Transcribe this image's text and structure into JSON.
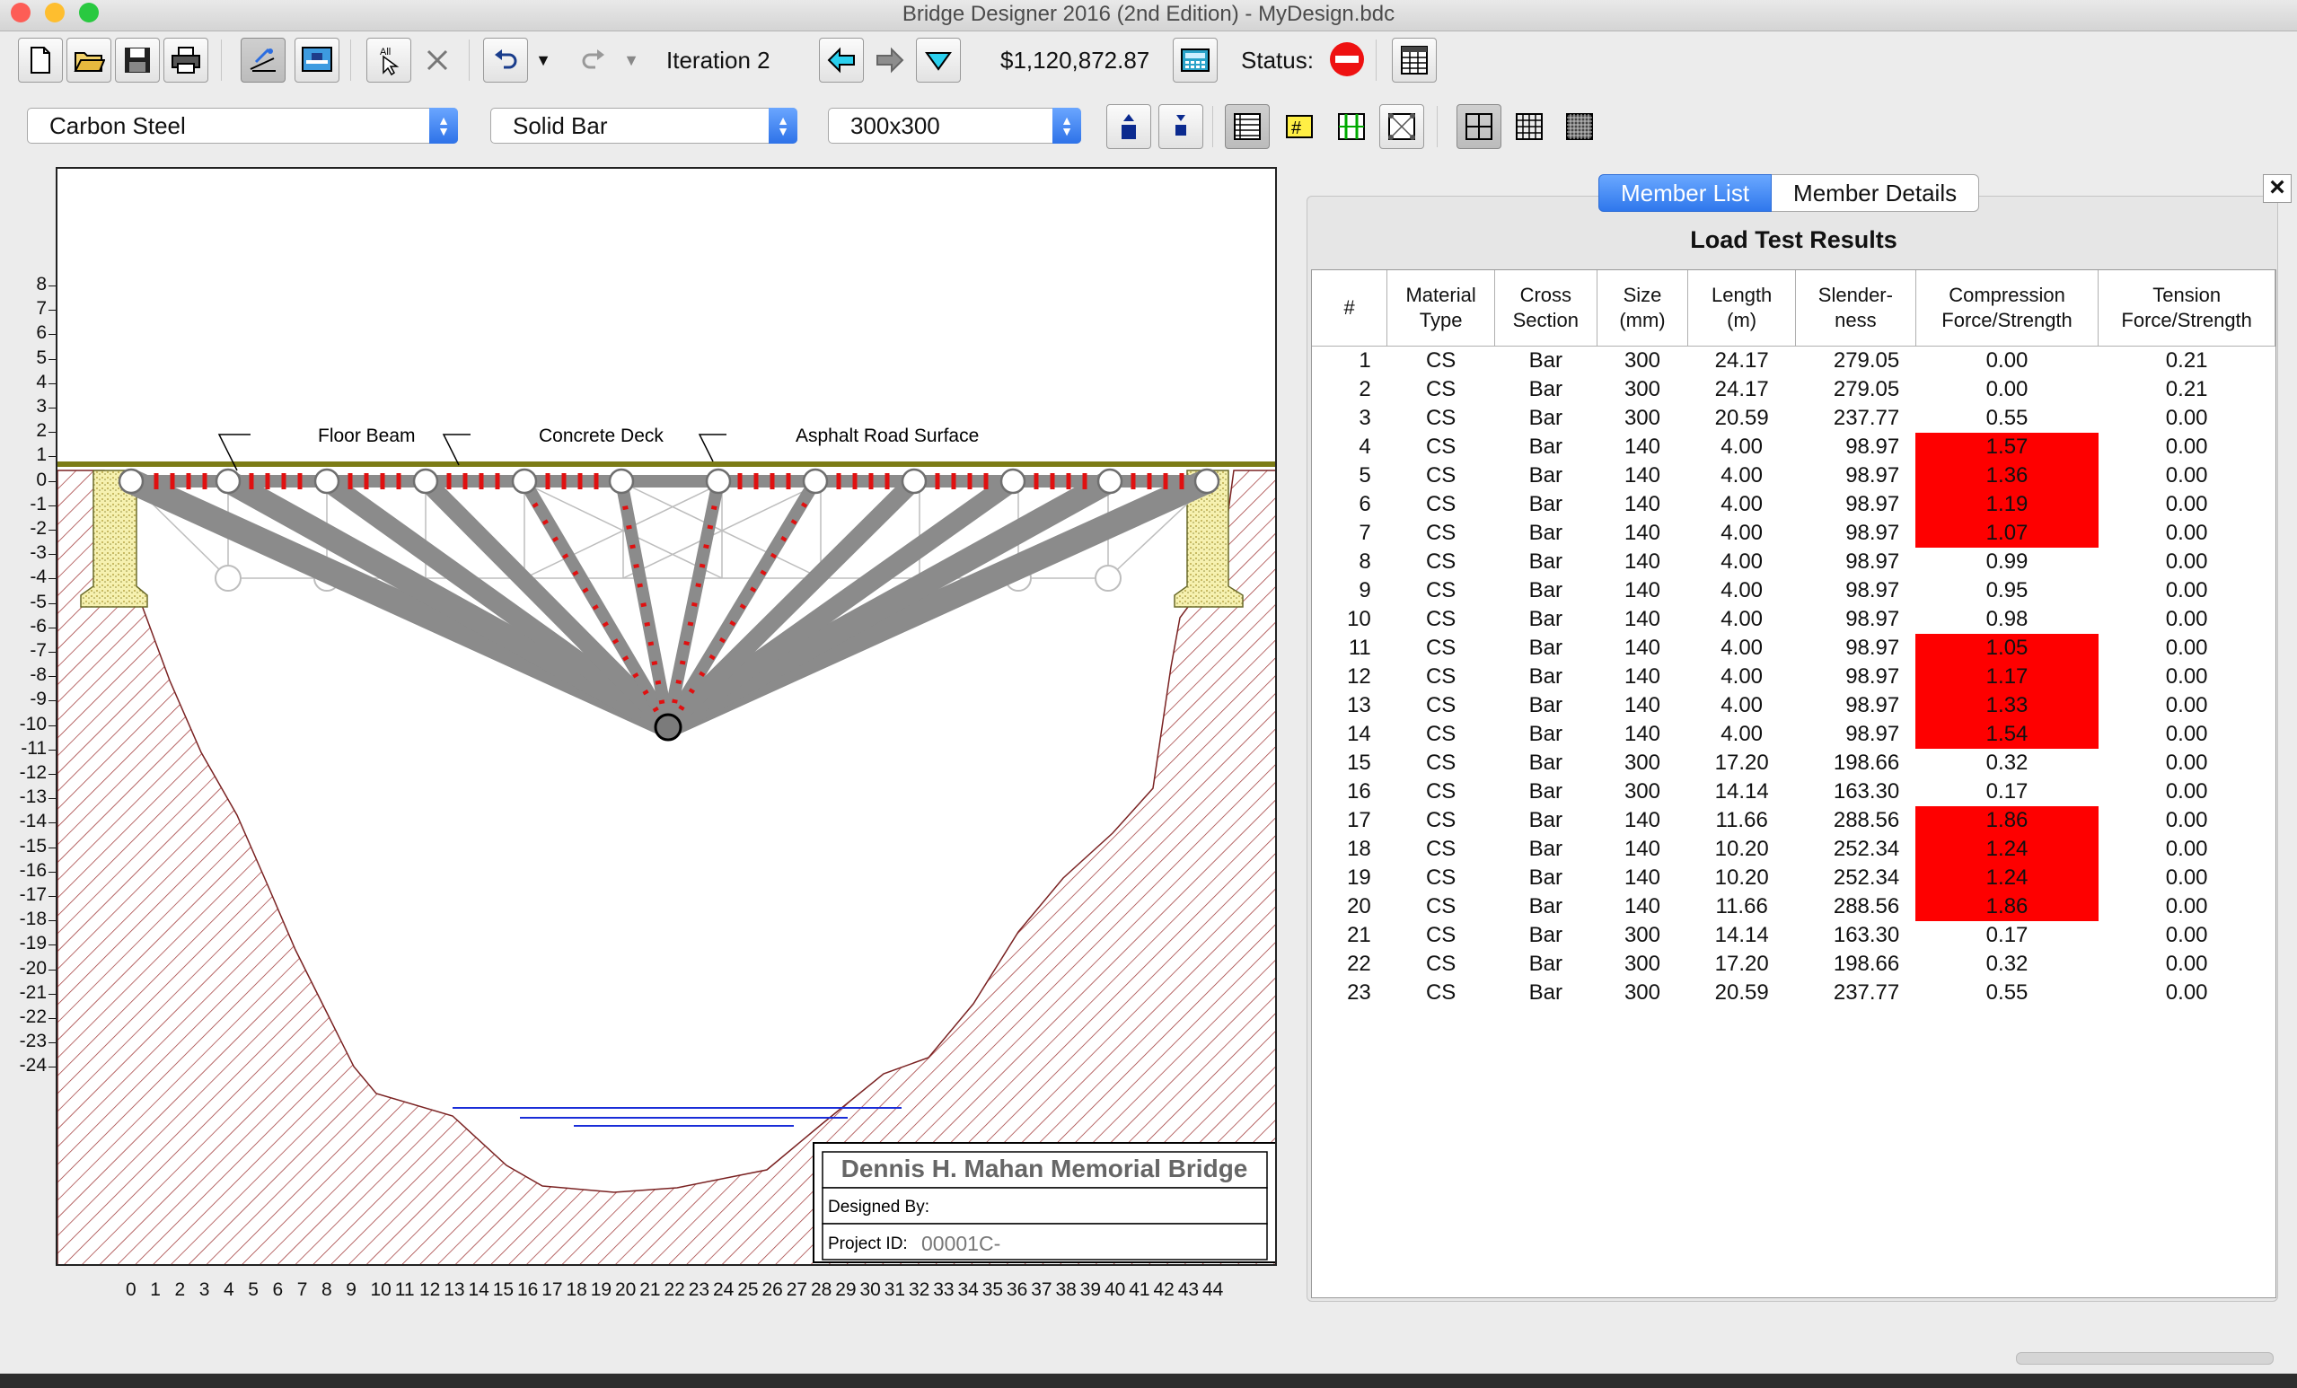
{
  "window": {
    "title": "Bridge Designer 2016 (2nd Edition) - MyDesign.bdc"
  },
  "toolbar": {
    "iteration_label": "Iteration 2",
    "cost": "$1,120,872.87",
    "status_label": "Status:"
  },
  "selectors": {
    "material": "Carbon Steel",
    "section": "Solid Bar",
    "size": "300x300"
  },
  "drawing": {
    "y_ticks": [
      "8",
      "7",
      "6",
      "5",
      "4",
      "3",
      "2",
      "1",
      "0",
      "-1",
      "-2",
      "-3",
      "-4",
      "-5",
      "-6",
      "-7",
      "-8",
      "-9",
      "-10",
      "-11",
      "-12",
      "-13",
      "-14",
      "-15",
      "-16",
      "-17",
      "-18",
      "-19",
      "-20",
      "-21",
      "-22",
      "-23",
      "-24"
    ],
    "x_ticks": [
      "0",
      "1",
      "2",
      "3",
      "4",
      "5",
      "6",
      "7",
      "8",
      "9",
      "10",
      "11",
      "12",
      "13",
      "14",
      "15",
      "16",
      "17",
      "18",
      "19",
      "20",
      "21",
      "22",
      "23",
      "24",
      "25",
      "26",
      "27",
      "28",
      "29",
      "30",
      "31",
      "32",
      "33",
      "34",
      "35",
      "36",
      "37",
      "38",
      "39",
      "40",
      "41",
      "42",
      "43",
      "44"
    ],
    "annotations": {
      "floor_beam": "Floor Beam",
      "concrete_deck": "Concrete Deck",
      "asphalt": "Asphalt Road Surface"
    },
    "title_block": {
      "name": "Dennis H. Mahan Memorial Bridge",
      "designed_by": "Designed By:",
      "project_id_label": "Project ID:",
      "project_id": "00001C-"
    }
  },
  "panel": {
    "tabs": [
      "Member List",
      "Member Details"
    ],
    "title": "Load Test Results",
    "columns": [
      "#",
      "Material Type",
      "Cross Section",
      "Size (mm)",
      "Length (m)",
      "Slender-ness",
      "Compression Force/Strength",
      "Tension Force/Strength"
    ],
    "column_lines": [
      [
        "#"
      ],
      [
        "Material",
        "Type"
      ],
      [
        "Cross",
        "Section"
      ],
      [
        "Size",
        "(mm)"
      ],
      [
        "Length",
        "(m)"
      ],
      [
        "Slender-",
        "ness"
      ],
      [
        "Compression",
        "Force/Strength"
      ],
      [
        "Tension",
        "Force/Strength"
      ]
    ],
    "rows": [
      [
        "1",
        "CS",
        "Bar",
        "300",
        "24.17",
        "279.05",
        "0.00",
        "0.21"
      ],
      [
        "2",
        "CS",
        "Bar",
        "300",
        "24.17",
        "279.05",
        "0.00",
        "0.21"
      ],
      [
        "3",
        "CS",
        "Bar",
        "300",
        "20.59",
        "237.77",
        "0.55",
        "0.00"
      ],
      [
        "4",
        "CS",
        "Bar",
        "140",
        "4.00",
        "98.97",
        "1.57",
        "0.00"
      ],
      [
        "5",
        "CS",
        "Bar",
        "140",
        "4.00",
        "98.97",
        "1.36",
        "0.00"
      ],
      [
        "6",
        "CS",
        "Bar",
        "140",
        "4.00",
        "98.97",
        "1.19",
        "0.00"
      ],
      [
        "7",
        "CS",
        "Bar",
        "140",
        "4.00",
        "98.97",
        "1.07",
        "0.00"
      ],
      [
        "8",
        "CS",
        "Bar",
        "140",
        "4.00",
        "98.97",
        "0.99",
        "0.00"
      ],
      [
        "9",
        "CS",
        "Bar",
        "140",
        "4.00",
        "98.97",
        "0.95",
        "0.00"
      ],
      [
        "10",
        "CS",
        "Bar",
        "140",
        "4.00",
        "98.97",
        "0.98",
        "0.00"
      ],
      [
        "11",
        "CS",
        "Bar",
        "140",
        "4.00",
        "98.97",
        "1.05",
        "0.00"
      ],
      [
        "12",
        "CS",
        "Bar",
        "140",
        "4.00",
        "98.97",
        "1.17",
        "0.00"
      ],
      [
        "13",
        "CS",
        "Bar",
        "140",
        "4.00",
        "98.97",
        "1.33",
        "0.00"
      ],
      [
        "14",
        "CS",
        "Bar",
        "140",
        "4.00",
        "98.97",
        "1.54",
        "0.00"
      ],
      [
        "15",
        "CS",
        "Bar",
        "300",
        "17.20",
        "198.66",
        "0.32",
        "0.00"
      ],
      [
        "16",
        "CS",
        "Bar",
        "300",
        "14.14",
        "163.30",
        "0.17",
        "0.00"
      ],
      [
        "17",
        "CS",
        "Bar",
        "140",
        "11.66",
        "288.56",
        "1.86",
        "0.00"
      ],
      [
        "18",
        "CS",
        "Bar",
        "140",
        "10.20",
        "252.34",
        "1.24",
        "0.00"
      ],
      [
        "19",
        "CS",
        "Bar",
        "140",
        "10.20",
        "252.34",
        "1.24",
        "0.00"
      ],
      [
        "20",
        "CS",
        "Bar",
        "140",
        "11.66",
        "288.56",
        "1.86",
        "0.00"
      ],
      [
        "21",
        "CS",
        "Bar",
        "300",
        "14.14",
        "163.30",
        "0.17",
        "0.00"
      ],
      [
        "22",
        "CS",
        "Bar",
        "300",
        "17.20",
        "198.66",
        "0.32",
        "0.00"
      ],
      [
        "23",
        "CS",
        "Bar",
        "300",
        "20.59",
        "237.77",
        "0.55",
        "0.00"
      ]
    ],
    "fail_color": "#fe0000"
  }
}
